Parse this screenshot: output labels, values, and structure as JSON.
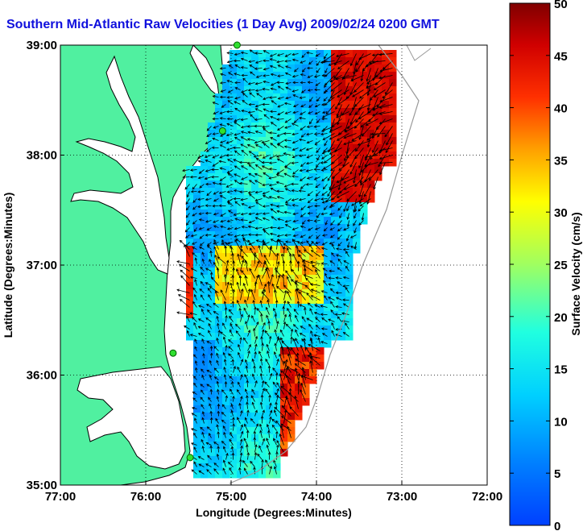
{
  "title": "Southern Mid-Atlantic Raw Velocities (1 Day Avg) 2009/02/24 0200 GMT",
  "map": {
    "x_axis_label": "Longitude (Degrees:Minutes)",
    "y_axis_label": "Latitude (Degrees:Minutes)",
    "lon_range": [
      -77,
      -72
    ],
    "lat_range": [
      35,
      39
    ],
    "x_ticks": [
      {
        "value": -77,
        "label": "77:00"
      },
      {
        "value": -76,
        "label": "76:00"
      },
      {
        "value": -75,
        "label": "75:00"
      },
      {
        "value": -74,
        "label": "74:00"
      },
      {
        "value": -73,
        "label": "73:00"
      },
      {
        "value": -72,
        "label": "72:00"
      }
    ],
    "y_ticks": [
      {
        "value": 39,
        "label": "39:00"
      },
      {
        "value": 38,
        "label": "38:00"
      },
      {
        "value": 37,
        "label": "37:00"
      },
      {
        "value": 36,
        "label": "36:00"
      },
      {
        "value": 35,
        "label": "35:00"
      }
    ],
    "grid": "dotted",
    "land_color": "#50f0a0",
    "coast_color": "#000000"
  },
  "colorbar": {
    "label": "Surface Velocity (cm/s)",
    "min": 0,
    "max": 50,
    "ticks": [
      "0",
      "5",
      "10",
      "15",
      "20",
      "25",
      "30",
      "35",
      "40",
      "45",
      "50"
    ],
    "colormap": "jet"
  },
  "stations": [
    {
      "lon": -74.93,
      "lat": 39.0
    },
    {
      "lon": -75.1,
      "lat": 38.22
    },
    {
      "lon": -75.68,
      "lat": 36.2
    },
    {
      "lon": -75.48,
      "lat": 35.25
    }
  ]
}
